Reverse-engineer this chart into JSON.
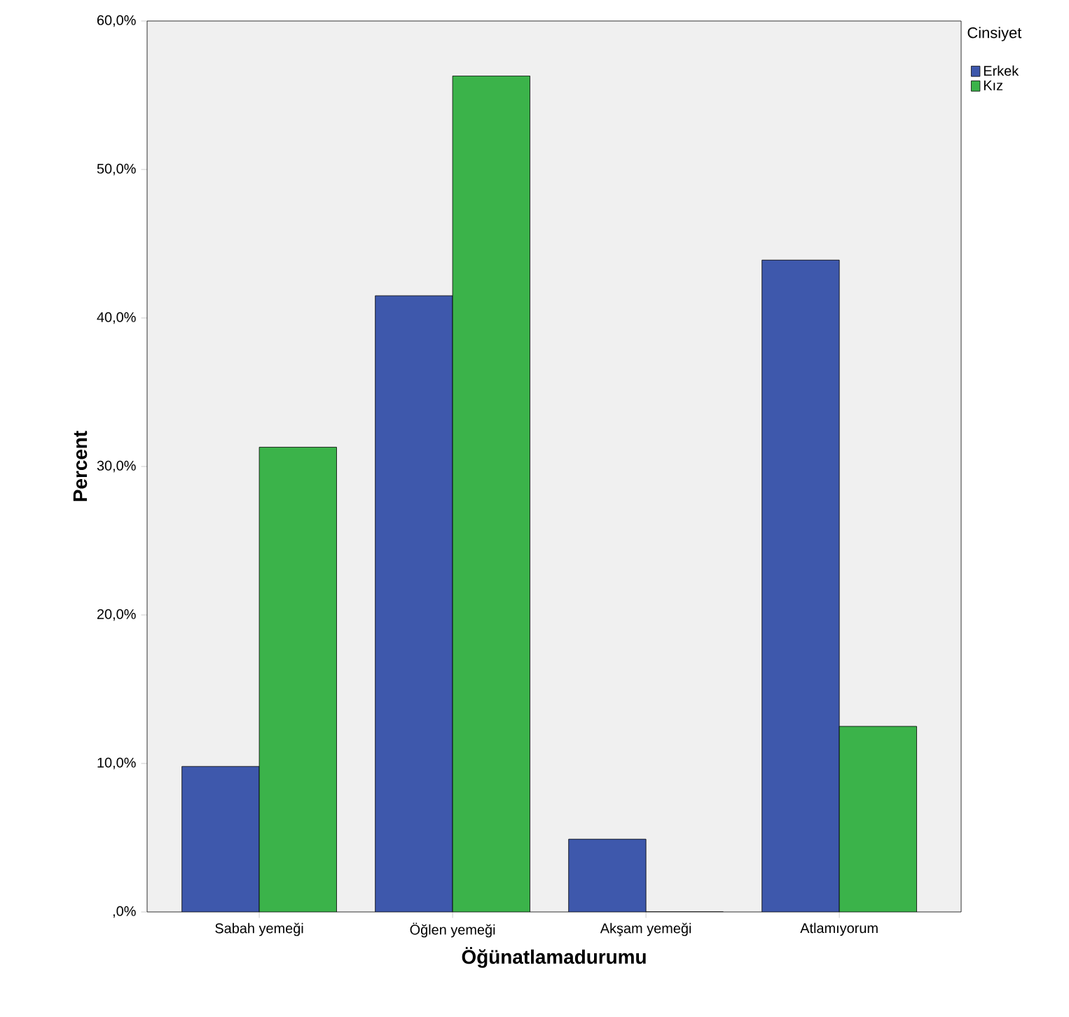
{
  "chart_data": {
    "type": "bar",
    "xlabel": "Öğünatlamadurumu",
    "ylabel": "Percent",
    "legend_title": "Cinsiyet",
    "legend": "top right",
    "categories": [
      "Sabah yemeği",
      "Öğlen yemeği",
      "Akşam yemeği",
      "Atlamıyorum"
    ],
    "series": [
      {
        "name": "Erkek",
        "color": "#3e58ac",
        "values": [
          9.8,
          41.5,
          4.9,
          43.9
        ]
      },
      {
        "name": "Kız",
        "color": "#3bb34a",
        "values": [
          31.3,
          56.3,
          0,
          12.5
        ]
      }
    ],
    "ylim": [
      0,
      60
    ],
    "yticks": [
      {
        "value": 0,
        "label": ",0%"
      },
      {
        "value": 10,
        "label": "10,0%"
      },
      {
        "value": 20,
        "label": "20,0%"
      },
      {
        "value": 30,
        "label": "30,0%"
      },
      {
        "value": 40,
        "label": "40,0%"
      },
      {
        "value": 50,
        "label": "50,0%"
      },
      {
        "value": 60,
        "label": "60,0%"
      }
    ],
    "grid": false
  }
}
